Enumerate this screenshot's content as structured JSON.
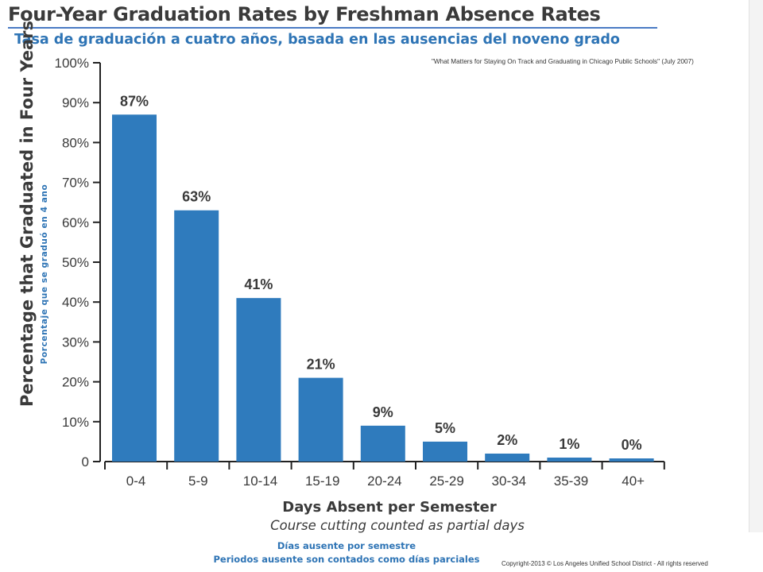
{
  "header": {
    "title": "Four-Year Graduation Rates by Freshman Absence Rates",
    "subtitle_es": "Tasa de graduación a cuatro años, basada en las ausencias del noveno grado",
    "source": "\"What Matters for Staying On Track and Graduating in Chicago Public Schools\" (July 2007)"
  },
  "footer": {
    "copyright": "Copyright-2013 © Los Angeles Unified School District - All rights reserved"
  },
  "colors": {
    "bar": "#2f7bbd",
    "accent": "#2e74b5",
    "text": "#3a3a3a"
  },
  "chart_data": {
    "type": "bar",
    "title": "Four-Year Graduation Rates by Freshman Absence Rates",
    "ylabel": "Percentage that Graduated in Four Years",
    "ylabel_es": "Porcentaje que se graduó en 4 ano",
    "xlabel": "Days Absent per Semester",
    "xlabel_note": "Course cutting counted as partial days",
    "xlabel_es": "Días ausente por semestre",
    "xlabel_note_es": "Periodos ausente son contados como días parciales",
    "categories": [
      "0-4",
      "5-9",
      "10-14",
      "15-19",
      "20-24",
      "25-29",
      "30-34",
      "35-39",
      "40+"
    ],
    "values": [
      87,
      63,
      41,
      21,
      9,
      5,
      2,
      1,
      0
    ],
    "data_labels": [
      "87%",
      "63%",
      "41%",
      "21%",
      "9%",
      "5%",
      "2%",
      "1%",
      "0%"
    ],
    "ylim": [
      0,
      100
    ],
    "yticks": [
      0,
      10,
      20,
      30,
      40,
      50,
      60,
      70,
      80,
      90,
      100
    ],
    "ytick_labels": [
      "0",
      "10%",
      "20%",
      "30%",
      "40%",
      "50%",
      "60%",
      "70%",
      "80%",
      "90%",
      "100%"
    ],
    "grid": false,
    "legend": "none"
  }
}
